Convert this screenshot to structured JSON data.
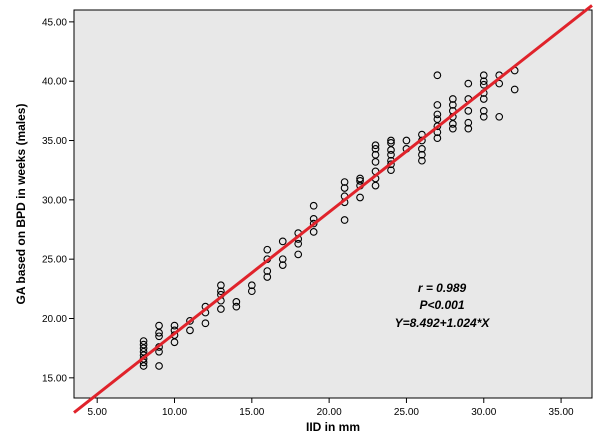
{
  "chart_data": {
    "type": "scatter",
    "xlabel": "IID in mm",
    "ylabel": "GA based on BPD in weeks (males)",
    "xlim": [
      3.5,
      37.0
    ],
    "ylim": [
      13.3,
      46.0
    ],
    "x_ticks": [
      5,
      10,
      15,
      20,
      25,
      30,
      35
    ],
    "y_ticks": [
      15,
      20,
      25,
      30,
      35,
      40,
      45
    ],
    "x_tick_labels": [
      "5.00",
      "10.00",
      "15.00",
      "20.00",
      "25.00",
      "30.00",
      "35.00"
    ],
    "y_tick_labels": [
      "15.00",
      "20.00",
      "25.00",
      "30.00",
      "35.00",
      "40.00",
      "45.00"
    ],
    "grid": false,
    "plot_background": "#e8e8e8",
    "marker_color": "#000000",
    "fit_line": {
      "intercept": 8.492,
      "slope": 1.024,
      "color": "#e0232b",
      "x_range": [
        3.5,
        37.0
      ]
    },
    "annotations": [
      "r = 0.989",
      "P<0.001",
      "Y=8.492+1.024*X"
    ],
    "points": [
      [
        8,
        16.0
      ],
      [
        8,
        16.3
      ],
      [
        8,
        16.6
      ],
      [
        8,
        16.9
      ],
      [
        8,
        17.2
      ],
      [
        8,
        17.5
      ],
      [
        8,
        17.8
      ],
      [
        8,
        18.1
      ],
      [
        9,
        16.0
      ],
      [
        9,
        17.2
      ],
      [
        9,
        17.6
      ],
      [
        9,
        18.5
      ],
      [
        9,
        18.8
      ],
      [
        9,
        19.4
      ],
      [
        10,
        18.0
      ],
      [
        10,
        18.6
      ],
      [
        10,
        19.0
      ],
      [
        10,
        19.4
      ],
      [
        11,
        19.0
      ],
      [
        11,
        19.8
      ],
      [
        12,
        19.6
      ],
      [
        12,
        20.5
      ],
      [
        12,
        21.0
      ],
      [
        13,
        20.8
      ],
      [
        13,
        21.5
      ],
      [
        13,
        22.0
      ],
      [
        13,
        22.3
      ],
      [
        13,
        22.8
      ],
      [
        14,
        21.0
      ],
      [
        14,
        21.4
      ],
      [
        15,
        22.3
      ],
      [
        15,
        22.8
      ],
      [
        16,
        23.5
      ],
      [
        16,
        24.0
      ],
      [
        16,
        25.0
      ],
      [
        16,
        25.8
      ],
      [
        17,
        24.5
      ],
      [
        17,
        25.0
      ],
      [
        17,
        26.5
      ],
      [
        18,
        25.4
      ],
      [
        18,
        26.3
      ],
      [
        18,
        26.7
      ],
      [
        18,
        27.2
      ],
      [
        19,
        27.3
      ],
      [
        19,
        28.0
      ],
      [
        19,
        28.4
      ],
      [
        19,
        29.5
      ],
      [
        21,
        28.3
      ],
      [
        21,
        29.8
      ],
      [
        21,
        30.3
      ],
      [
        21,
        31.0
      ],
      [
        21,
        31.5
      ],
      [
        22,
        30.2
      ],
      [
        22,
        31.2
      ],
      [
        22,
        31.6
      ],
      [
        22,
        31.8
      ],
      [
        23,
        31.2
      ],
      [
        23,
        31.8
      ],
      [
        23,
        32.4
      ],
      [
        23,
        33.2
      ],
      [
        23,
        33.8
      ],
      [
        23,
        34.3
      ],
      [
        23,
        34.6
      ],
      [
        24,
        32.5
      ],
      [
        24,
        33.0
      ],
      [
        24,
        33.3
      ],
      [
        24,
        33.8
      ],
      [
        24,
        34.2
      ],
      [
        24,
        34.8
      ],
      [
        24,
        35.0
      ],
      [
        25,
        34.3
      ],
      [
        25,
        35.0
      ],
      [
        26,
        33.3
      ],
      [
        26,
        33.8
      ],
      [
        26,
        34.3
      ],
      [
        26,
        35.0
      ],
      [
        26,
        35.5
      ],
      [
        27,
        35.2
      ],
      [
        27,
        35.7
      ],
      [
        27,
        36.2
      ],
      [
        27,
        36.8
      ],
      [
        27,
        37.2
      ],
      [
        27,
        38.0
      ],
      [
        27,
        40.5
      ],
      [
        28,
        36.0
      ],
      [
        28,
        36.4
      ],
      [
        28,
        37.0
      ],
      [
        28,
        37.5
      ],
      [
        28,
        38.0
      ],
      [
        28,
        38.5
      ],
      [
        29,
        36.0
      ],
      [
        29,
        36.5
      ],
      [
        29,
        37.5
      ],
      [
        29,
        38.5
      ],
      [
        29,
        39.8
      ],
      [
        30,
        37.0
      ],
      [
        30,
        37.5
      ],
      [
        30,
        38.5
      ],
      [
        30,
        39.0
      ],
      [
        30,
        39.7
      ],
      [
        30,
        40.0
      ],
      [
        30,
        40.5
      ],
      [
        31,
        37.0
      ],
      [
        31,
        39.8
      ],
      [
        31,
        40.5
      ],
      [
        32,
        39.3
      ],
      [
        32,
        40.9
      ]
    ]
  }
}
